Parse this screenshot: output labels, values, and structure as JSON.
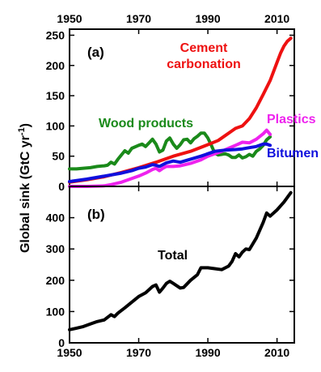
{
  "chart_data": [
    {
      "type": "line",
      "panel_label": "(a)",
      "xlim": [
        1950,
        2015
      ],
      "ylim": [
        0,
        260
      ],
      "x_ticks": [
        "1950",
        "1970",
        "1990",
        "2010"
      ],
      "y_ticks": [
        "0",
        "50",
        "100",
        "150",
        "200",
        "250"
      ],
      "x_tick_position": "top",
      "series": [
        {
          "name": "Wood products",
          "color": "#1a8a1a",
          "x": [
            1950,
            1952,
            1954,
            1956,
            1958,
            1960,
            1961,
            1962,
            1963,
            1964,
            1966,
            1967,
            1968,
            1970,
            1971,
            1972,
            1973,
            1974,
            1975,
            1976,
            1977,
            1978,
            1979,
            1980,
            1981,
            1982,
            1983,
            1984,
            1985,
            1986,
            1987,
            1988,
            1989,
            1990,
            1991,
            1992,
            1993,
            1994,
            1995,
            1996,
            1997,
            1998,
            1999,
            2000,
            2001,
            2002,
            2003,
            2004,
            2005,
            2006,
            2007,
            2008
          ],
          "y": [
            29,
            29,
            30,
            31,
            33,
            34,
            35,
            40,
            37,
            45,
            59,
            55,
            63,
            68,
            70,
            66,
            72,
            78,
            70,
            57,
            60,
            75,
            80,
            70,
            63,
            69,
            77,
            78,
            72,
            79,
            83,
            88,
            88,
            80,
            68,
            55,
            52,
            53,
            54,
            52,
            48,
            48,
            52,
            47,
            49,
            53,
            50,
            58,
            62,
            68,
            77,
            82
          ]
        },
        {
          "name": "Cement carbonation",
          "color": "#ee1111",
          "x": [
            1950,
            1955,
            1960,
            1965,
            1970,
            1975,
            1980,
            1985,
            1990,
            1993,
            1995,
            1997,
            1998,
            2000,
            2002,
            2004,
            2006,
            2008,
            2010,
            2011,
            2012,
            2013,
            2014
          ],
          "y": [
            7,
            11,
            16,
            23,
            31,
            40,
            50,
            58,
            69,
            76,
            84,
            92,
            96,
            100,
            112,
            130,
            152,
            175,
            205,
            220,
            232,
            240,
            245
          ]
        },
        {
          "name": "Plastics",
          "color": "#ee22ee",
          "x": [
            1950,
            1955,
            1960,
            1962,
            1965,
            1968,
            1970,
            1972,
            1974,
            1975,
            1976,
            1977,
            1978,
            1980,
            1982,
            1985,
            1988,
            1990,
            1992,
            1994,
            1996,
            1998,
            2000,
            2002,
            2004,
            2006,
            2007,
            2008
          ],
          "y": [
            0,
            0,
            1,
            3,
            7,
            13,
            17,
            22,
            28,
            30,
            26,
            30,
            33,
            33,
            34,
            38,
            44,
            50,
            54,
            58,
            63,
            68,
            73,
            72,
            78,
            87,
            93,
            86
          ]
        },
        {
          "name": "Bitumen",
          "color": "#1010dd",
          "x": [
            1950,
            1955,
            1960,
            1965,
            1968,
            1970,
            1972,
            1974,
            1975,
            1976,
            1978,
            1980,
            1982,
            1985,
            1988,
            1990,
            1992,
            1995,
            1998,
            2000,
            2002,
            2004,
            2006,
            2007,
            2008
          ],
          "y": [
            8,
            12,
            17,
            22,
            26,
            30,
            32,
            36,
            35,
            33,
            39,
            42,
            40,
            45,
            50,
            54,
            58,
            60,
            61,
            62,
            64,
            66,
            70,
            70,
            68
          ]
        }
      ]
    },
    {
      "type": "line",
      "panel_label": "(b)",
      "xlim": [
        1950,
        2015
      ],
      "ylim": [
        0,
        500
      ],
      "x_ticks": [
        "1950",
        "1970",
        "1990",
        "2010"
      ],
      "y_ticks": [
        "0",
        "100",
        "200",
        "300",
        "400"
      ],
      "x_tick_position": "bottom",
      "series": [
        {
          "name": "Total",
          "color": "#000000",
          "x": [
            1950,
            1952,
            1954,
            1956,
            1958,
            1960,
            1962,
            1963,
            1964,
            1966,
            1968,
            1970,
            1972,
            1973,
            1974,
            1975,
            1976,
            1977,
            1978,
            1979,
            1980,
            1982,
            1983,
            1985,
            1987,
            1988,
            1990,
            1992,
            1994,
            1996,
            1997,
            1998,
            1999,
            2000,
            2001,
            2002,
            2004,
            2006,
            2007,
            2008,
            2010,
            2012,
            2014
          ],
          "y": [
            42,
            47,
            52,
            60,
            68,
            73,
            90,
            84,
            95,
            112,
            130,
            148,
            160,
            170,
            180,
            185,
            162,
            175,
            190,
            197,
            190,
            175,
            177,
            200,
            218,
            240,
            240,
            237,
            234,
            245,
            260,
            285,
            275,
            290,
            300,
            298,
            335,
            385,
            415,
            405,
            425,
            450,
            480
          ]
        }
      ]
    }
  ],
  "ylabel": "Global sink (GtC yr⁻¹)"
}
